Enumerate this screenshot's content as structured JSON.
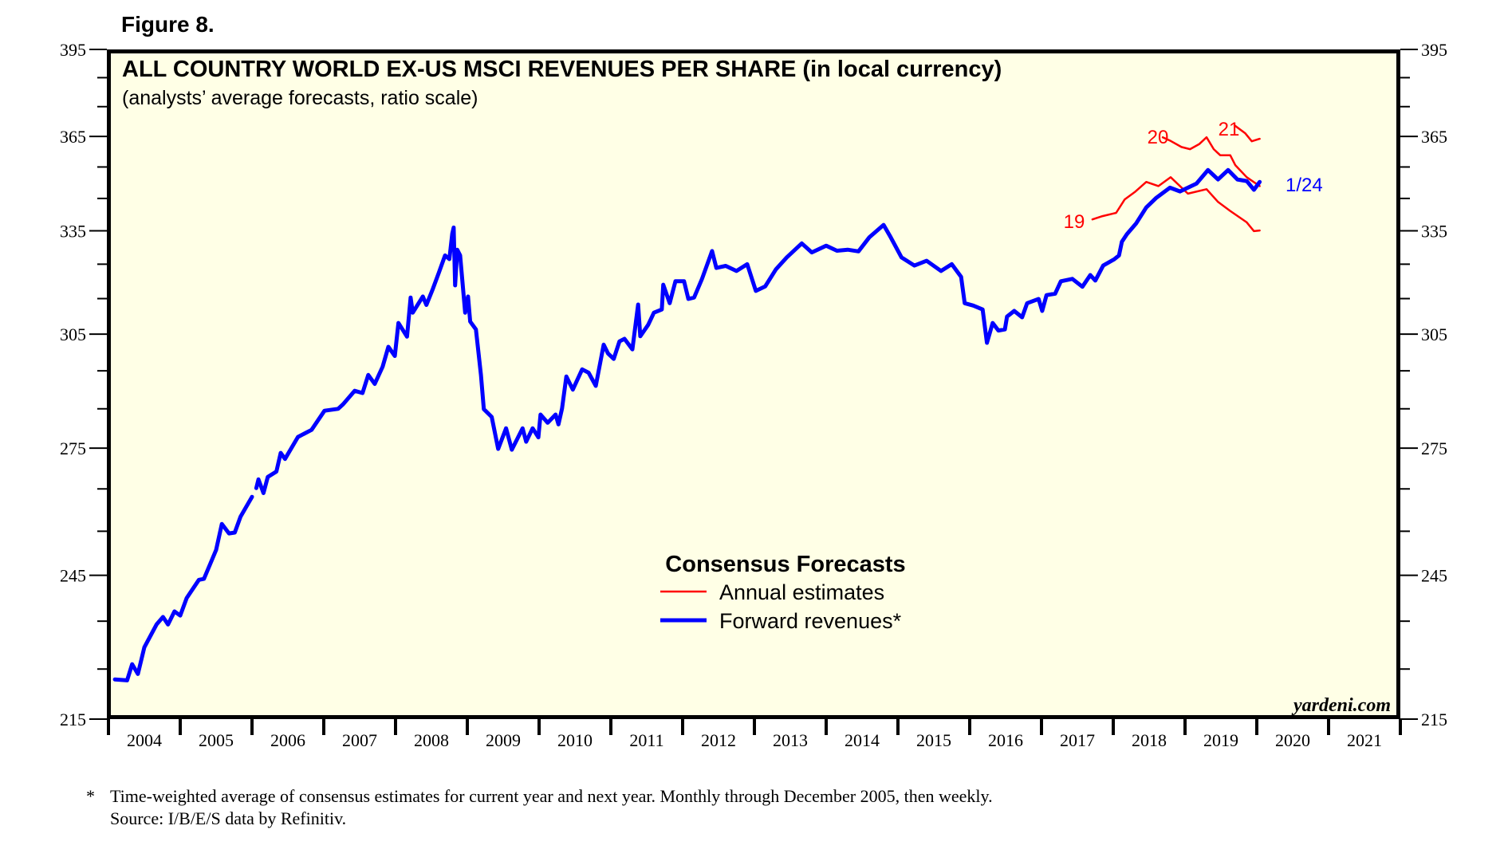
{
  "figure_label": "Figure 8.",
  "footnote": {
    "marker": "*",
    "line1": "Time-weighted average of consensus estimates for current year and next year. Monthly through December 2005, then weekly.",
    "line2": "Source: I/B/E/S data by Refinitiv."
  },
  "watermark": "yardeni.com",
  "colors": {
    "plot_background": "#ffffe6",
    "forward_revenues": "#0000ff",
    "annual_estimates": "#ff0000",
    "axis": "#000000"
  },
  "chart_data": {
    "type": "line",
    "title": "ALL COUNTRY WORLD EX-US MSCI REVENUES PER SHARE (in local currency)",
    "subtitle": "(analysts’ average forecasts, ratio scale)",
    "xlabel": "",
    "ylabel": "",
    "y_scale": "log",
    "ylim": [
      215,
      395
    ],
    "xlim": [
      2004,
      2022
    ],
    "y_ticks_major": [
      215,
      245,
      275,
      305,
      335,
      365,
      395
    ],
    "y_ticks_minor": [
      225,
      235,
      255,
      265,
      285,
      295,
      315,
      325,
      345,
      355,
      375,
      385
    ],
    "x_tick_labels": [
      "2004",
      "2005",
      "2006",
      "2007",
      "2008",
      "2009",
      "2010",
      "2011",
      "2012",
      "2013",
      "2014",
      "2015",
      "2016",
      "2017",
      "2018",
      "2019",
      "2020",
      "2021"
    ],
    "grid": false,
    "legend": {
      "title": "Consensus Forecasts",
      "placement": "bottom-center",
      "entries": [
        {
          "label": "Annual estimates",
          "series": "annual"
        },
        {
          "label": "Forward revenues*",
          "series": "forward"
        }
      ]
    },
    "series": [
      {
        "name": "Forward revenues*",
        "key": "forward",
        "end_label": "1/24",
        "segments": [
          [
            [
              2004.09,
              222.9
            ],
            [
              2004.26,
              222.7
            ],
            [
              2004.33,
              226.0
            ],
            [
              2004.41,
              224.0
            ],
            [
              2004.5,
              229.5
            ],
            [
              2004.67,
              234.3
            ],
            [
              2004.76,
              235.9
            ],
            [
              2004.83,
              234.3
            ],
            [
              2004.92,
              237.1
            ],
            [
              2005.0,
              236.2
            ],
            [
              2005.09,
              240.0
            ],
            [
              2005.26,
              244.0
            ],
            [
              2005.33,
              244.2
            ],
            [
              2005.5,
              250.7
            ],
            [
              2005.58,
              256.7
            ],
            [
              2005.68,
              254.5
            ],
            [
              2005.76,
              254.7
            ],
            [
              2005.84,
              258.4
            ],
            [
              2006.0,
              263.1
            ]
          ],
          [
            [
              2006.06,
              265.2
            ],
            [
              2006.09,
              267.3
            ],
            [
              2006.16,
              264.0
            ],
            [
              2006.22,
              267.9
            ],
            [
              2006.34,
              269.2
            ],
            [
              2006.4,
              273.8
            ],
            [
              2006.46,
              272.3
            ],
            [
              2006.64,
              277.8
            ],
            [
              2006.83,
              279.6
            ],
            [
              2007.01,
              284.5
            ],
            [
              2007.2,
              285.0
            ],
            [
              2007.27,
              286.2
            ],
            [
              2007.43,
              289.7
            ],
            [
              2007.54,
              289.1
            ],
            [
              2007.62,
              293.9
            ],
            [
              2007.71,
              291.5
            ],
            [
              2007.82,
              296.1
            ],
            [
              2007.9,
              301.5
            ],
            [
              2007.99,
              299.0
            ],
            [
              2008.04,
              308.1
            ],
            [
              2008.16,
              304.3
            ],
            [
              2008.21,
              315.3
            ],
            [
              2008.24,
              311.0
            ],
            [
              2008.38,
              315.6
            ],
            [
              2008.43,
              313.2
            ],
            [
              2008.52,
              317.8
            ],
            [
              2008.6,
              322.3
            ],
            [
              2008.69,
              327.6
            ],
            [
              2008.75,
              326.5
            ],
            [
              2008.79,
              334.1
            ],
            [
              2008.81,
              336.0
            ],
            [
              2008.83,
              318.8
            ],
            [
              2008.86,
              329.3
            ],
            [
              2008.9,
              327.6
            ],
            [
              2008.97,
              311.0
            ],
            [
              2009.01,
              315.6
            ],
            [
              2009.04,
              308.5
            ],
            [
              2009.12,
              306.3
            ],
            [
              2009.19,
              293.9
            ],
            [
              2009.23,
              284.9
            ],
            [
              2009.34,
              282.9
            ],
            [
              2009.43,
              274.8
            ],
            [
              2009.54,
              280.0
            ],
            [
              2009.62,
              274.6
            ],
            [
              2009.77,
              280.0
            ],
            [
              2009.82,
              276.6
            ],
            [
              2009.91,
              280.0
            ],
            [
              2009.99,
              277.7
            ],
            [
              2010.02,
              283.5
            ],
            [
              2010.12,
              281.4
            ],
            [
              2010.23,
              283.5
            ],
            [
              2010.27,
              281.0
            ],
            [
              2010.32,
              285.1
            ],
            [
              2010.38,
              293.5
            ],
            [
              2010.47,
              290.0
            ],
            [
              2010.6,
              295.4
            ],
            [
              2010.69,
              294.5
            ],
            [
              2010.79,
              291.0
            ],
            [
              2010.9,
              302.1
            ],
            [
              2010.96,
              299.7
            ],
            [
              2011.04,
              298.2
            ],
            [
              2011.12,
              303.0
            ],
            [
              2011.19,
              303.7
            ],
            [
              2011.3,
              300.8
            ],
            [
              2011.38,
              313.3
            ],
            [
              2011.41,
              304.4
            ],
            [
              2011.52,
              307.6
            ],
            [
              2011.6,
              311.0
            ],
            [
              2011.71,
              311.9
            ],
            [
              2011.73,
              319.0
            ],
            [
              2011.82,
              313.7
            ],
            [
              2011.9,
              320.0
            ],
            [
              2012.02,
              320.0
            ],
            [
              2012.08,
              314.9
            ],
            [
              2012.16,
              315.3
            ],
            [
              2012.27,
              320.7
            ],
            [
              2012.41,
              328.9
            ],
            [
              2012.47,
              323.9
            ],
            [
              2012.6,
              324.5
            ],
            [
              2012.75,
              323.0
            ],
            [
              2012.9,
              325.0
            ],
            [
              2013.02,
              317.2
            ],
            [
              2013.15,
              318.5
            ],
            [
              2013.3,
              323.5
            ],
            [
              2013.45,
              327.0
            ],
            [
              2013.66,
              331.2
            ],
            [
              2013.8,
              328.5
            ],
            [
              2014.0,
              330.5
            ],
            [
              2014.15,
              329.0
            ],
            [
              2014.3,
              329.3
            ],
            [
              2014.45,
              328.8
            ],
            [
              2014.6,
              333.0
            ],
            [
              2014.8,
              336.8
            ],
            [
              2014.9,
              333.0
            ],
            [
              2015.05,
              327.0
            ],
            [
              2015.23,
              324.6
            ],
            [
              2015.4,
              326.0
            ],
            [
              2015.6,
              323.0
            ],
            [
              2015.75,
              325.0
            ],
            [
              2015.88,
              321.3
            ],
            [
              2015.93,
              313.7
            ],
            [
              2016.05,
              313.0
            ],
            [
              2016.18,
              311.9
            ],
            [
              2016.24,
              302.6
            ],
            [
              2016.32,
              308.1
            ],
            [
              2016.4,
              306.0
            ],
            [
              2016.49,
              306.3
            ],
            [
              2016.52,
              309.9
            ],
            [
              2016.62,
              311.5
            ],
            [
              2016.73,
              309.7
            ],
            [
              2016.8,
              313.7
            ],
            [
              2016.96,
              314.9
            ],
            [
              2017.01,
              311.5
            ],
            [
              2017.07,
              316.0
            ],
            [
              2017.19,
              316.4
            ],
            [
              2017.27,
              320.0
            ],
            [
              2017.43,
              320.7
            ],
            [
              2017.57,
              318.4
            ],
            [
              2017.68,
              321.8
            ],
            [
              2017.75,
              320.2
            ],
            [
              2017.86,
              324.6
            ],
            [
              2018.01,
              326.4
            ],
            [
              2018.08,
              327.6
            ],
            [
              2018.12,
              331.7
            ],
            [
              2018.19,
              334.0
            ],
            [
              2018.32,
              337.3
            ],
            [
              2018.46,
              342.2
            ],
            [
              2018.6,
              345.2
            ],
            [
              2018.79,
              348.4
            ],
            [
              2018.93,
              347.2
            ],
            [
              2019.16,
              349.7
            ],
            [
              2019.32,
              354.0
            ],
            [
              2019.46,
              351.0
            ],
            [
              2019.6,
              354.0
            ],
            [
              2019.73,
              351.0
            ],
            [
              2019.86,
              350.5
            ],
            [
              2019.96,
              347.7
            ],
            [
              2020.04,
              350.2
            ]
          ]
        ]
      },
      {
        "name": "Annual estimates 2019",
        "key": "annual",
        "label": "19",
        "segments": [
          [
            [
              2017.71,
              338.5
            ],
            [
              2017.85,
              339.5
            ],
            [
              2018.04,
              340.5
            ],
            [
              2018.16,
              344.7
            ],
            [
              2018.3,
              347.0
            ],
            [
              2018.46,
              350.2
            ],
            [
              2018.63,
              348.9
            ],
            [
              2018.8,
              351.7
            ],
            [
              2019.04,
              346.5
            ],
            [
              2019.3,
              347.9
            ],
            [
              2019.46,
              343.9
            ],
            [
              2019.63,
              341.1
            ],
            [
              2019.86,
              337.6
            ],
            [
              2019.96,
              334.9
            ],
            [
              2020.04,
              335.1
            ]
          ]
        ]
      },
      {
        "name": "Annual estimates 2020",
        "key": "annual",
        "label": "20",
        "segments": [
          [
            [
              2018.69,
              364.7
            ],
            [
              2018.8,
              363.5
            ],
            [
              2018.95,
              361.5
            ],
            [
              2019.07,
              360.8
            ],
            [
              2019.2,
              362.5
            ],
            [
              2019.3,
              364.7
            ],
            [
              2019.4,
              360.8
            ],
            [
              2019.49,
              358.8
            ],
            [
              2019.63,
              358.8
            ],
            [
              2019.7,
              355.6
            ],
            [
              2019.86,
              351.7
            ],
            [
              2020.04,
              348.9
            ]
          ]
        ]
      },
      {
        "name": "Annual estimates 2021",
        "key": "annual",
        "label": "21",
        "segments": [
          [
            [
              2019.69,
              368.7
            ],
            [
              2019.84,
              366.0
            ],
            [
              2019.93,
              363.4
            ],
            [
              2020.04,
              364.2
            ]
          ]
        ]
      }
    ]
  }
}
